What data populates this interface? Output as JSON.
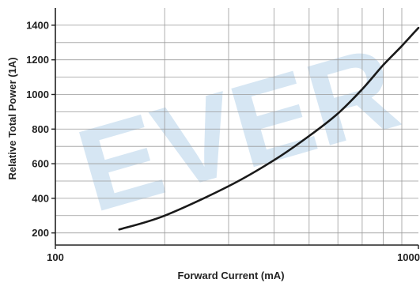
{
  "chart_data": {
    "type": "line",
    "xlabel": "Forward Current (mA)",
    "ylabel": "Relative Total Power (1A)",
    "x_scale": "log",
    "xlim": [
      100,
      1000
    ],
    "ylim": [
      130,
      1500
    ],
    "x_tick_labels": [
      {
        "value": 100,
        "label": "100"
      },
      {
        "value": 1000,
        "label": "1000"
      }
    ],
    "x_minor_gridlines": [
      200,
      300,
      400,
      500,
      600,
      700,
      800,
      900
    ],
    "y_ticks": [
      200,
      400,
      600,
      800,
      1000,
      1200,
      1400
    ],
    "y_minor_gridlines": [
      300,
      500,
      700,
      900,
      1100,
      1300
    ],
    "grid": true,
    "series": [
      {
        "color": "#1a1a1a",
        "x": [
          150,
          200,
          300,
          400,
          500,
          600,
          700,
          800,
          900,
          1000
        ],
        "y": [
          220,
          300,
          470,
          620,
          760,
          890,
          1030,
          1170,
          1280,
          1385
        ]
      }
    ],
    "watermark": {
      "text": "EVER",
      "color": "#d6e6f3"
    }
  }
}
